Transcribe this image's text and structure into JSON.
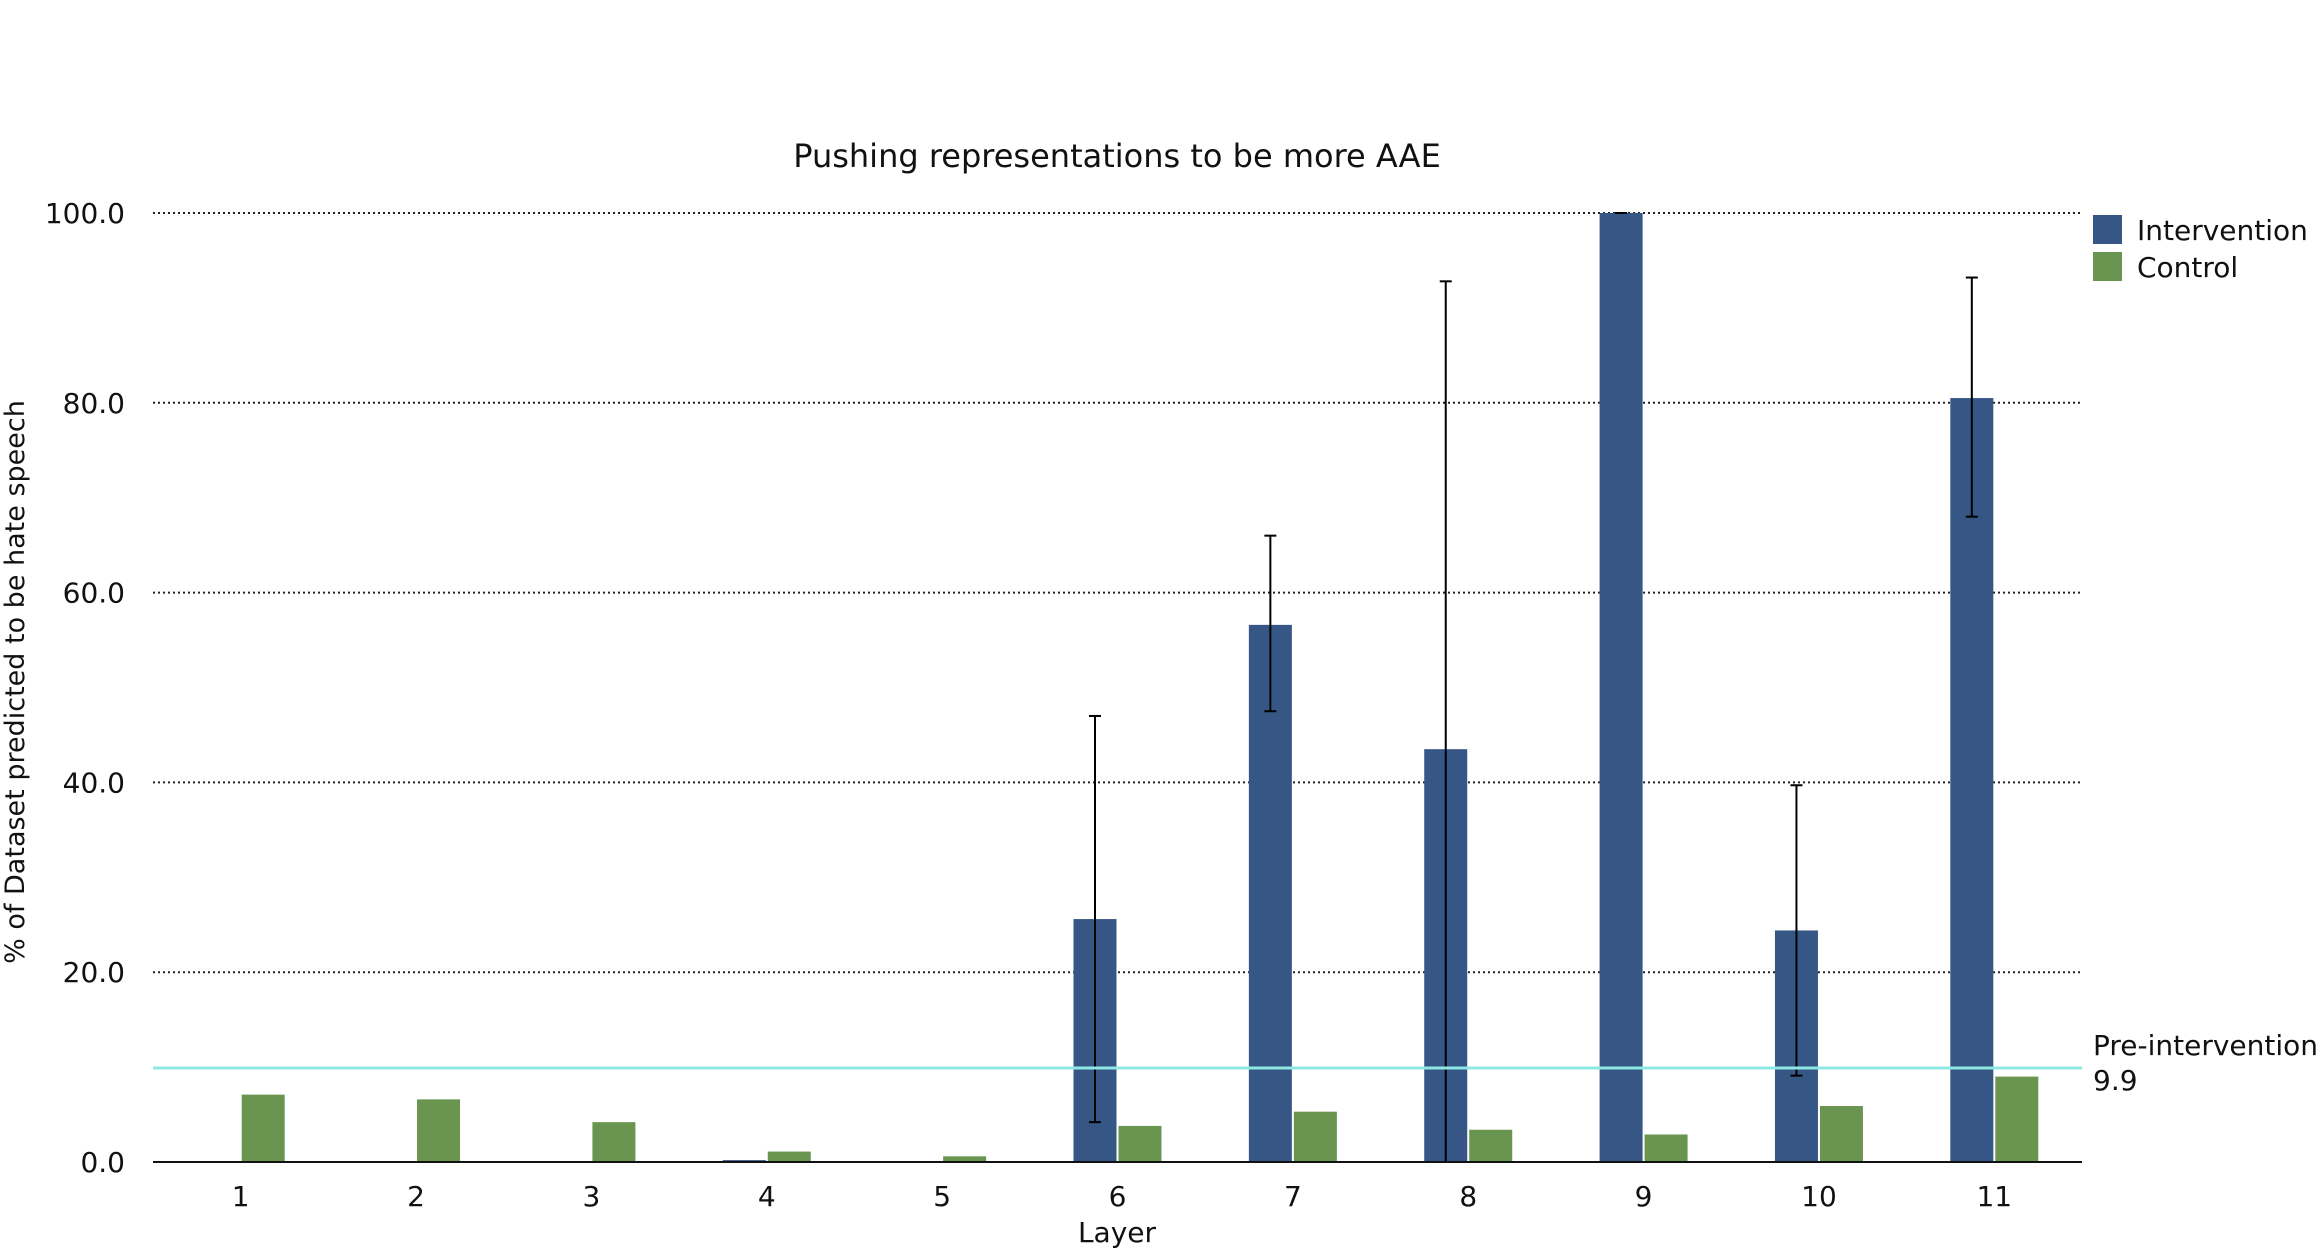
{
  "chart_data": {
    "type": "bar",
    "title": "Pushing representations to be more AAE",
    "xlabel": "Layer",
    "ylabel": "% of Dataset predicted to be hate speech",
    "categories": [
      "1",
      "2",
      "3",
      "4",
      "5",
      "6",
      "7",
      "8",
      "9",
      "10",
      "11"
    ],
    "ylim": [
      0,
      100
    ],
    "yticks": [
      "0.0",
      "20.0",
      "40.0",
      "60.0",
      "80.0",
      "100.0"
    ],
    "grid": "horizontal dotted",
    "legend_position": "top-right",
    "series": [
      {
        "name": "Intervention",
        "color": "#365785",
        "values": [
          0,
          0,
          0,
          0.2,
          0,
          25.6,
          56.6,
          43.5,
          100.0,
          24.4,
          80.5
        ],
        "error_low": [
          null,
          null,
          null,
          null,
          null,
          4.2,
          47.5,
          0,
          100.0,
          9.1,
          68.0
        ],
        "error_high": [
          null,
          null,
          null,
          null,
          null,
          47.0,
          66.0,
          92.8,
          100.0,
          39.7,
          93.2
        ]
      },
      {
        "name": "Control",
        "color": "#6a9550",
        "values": [
          7.1,
          6.6,
          4.2,
          1.1,
          0.6,
          3.8,
          5.3,
          3.4,
          2.9,
          5.9,
          9.0
        ]
      }
    ],
    "reference_line": {
      "value": 9.9,
      "label": "Pre-intervention",
      "value_label": "9.9",
      "color": "#8ee8e3"
    }
  }
}
